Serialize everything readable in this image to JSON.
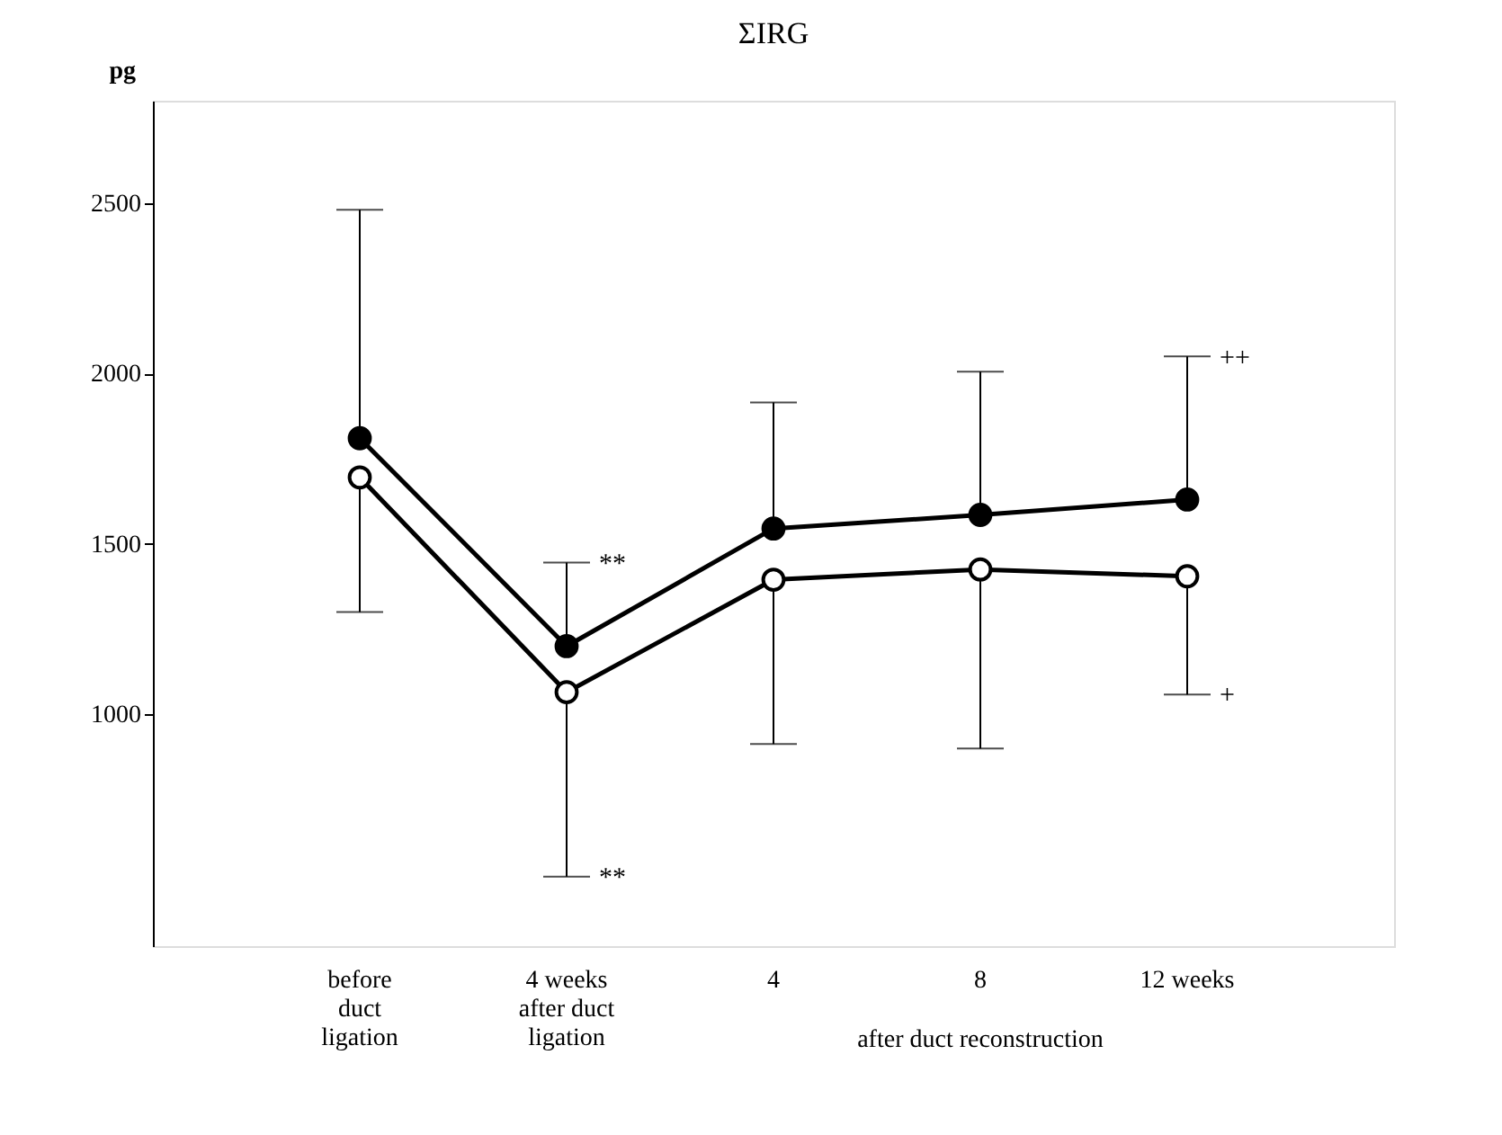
{
  "chart_data": {
    "type": "line",
    "title": "ΣIRG",
    "ylabel": "pg",
    "categories": [
      "before\nduct\nligation",
      "4 weeks\nafter duct\nligation",
      "4",
      "8",
      "12 weeks"
    ],
    "series": [
      {
        "color": "#000000",
        "values": [
          1810,
          1200,
          1545,
          1585,
          1630
        ],
        "errors": [
          [
            1810,
            2480
          ],
          [
            1200,
            1445
          ],
          [
            1545,
            1915
          ],
          [
            1585,
            2005
          ],
          [
            1630,
            2050
          ]
        ]
      },
      {
        "color": "#000000",
        "values": [
          1695,
          1065,
          1395,
          1425,
          1405
        ],
        "errors": [
          [
            1300,
            1695
          ],
          [
            524,
            1065
          ],
          [
            913,
            1395
          ],
          [
            900,
            1425
          ],
          [
            1058,
            1405
          ]
        ]
      }
    ],
    "ylim": [
      320,
      2800
    ],
    "yticks": [
      1000,
      1500,
      2000,
      2500
    ],
    "grid": false,
    "marker": "circle",
    "line_style": "solid",
    "annotations": [
      {
        "text": "**",
        "x": "4 weeks\nafter duct\nligation",
        "y": 1445
      },
      {
        "text": "**",
        "x": "4 weeks\nafter duct\nligation",
        "y": 524
      },
      {
        "text": "++",
        "x": "12 weeks",
        "y": 2048
      },
      {
        "text": "+",
        "x": "12 weeks",
        "y": 1058
      },
      "after duct reconstruction"
    ]
  }
}
